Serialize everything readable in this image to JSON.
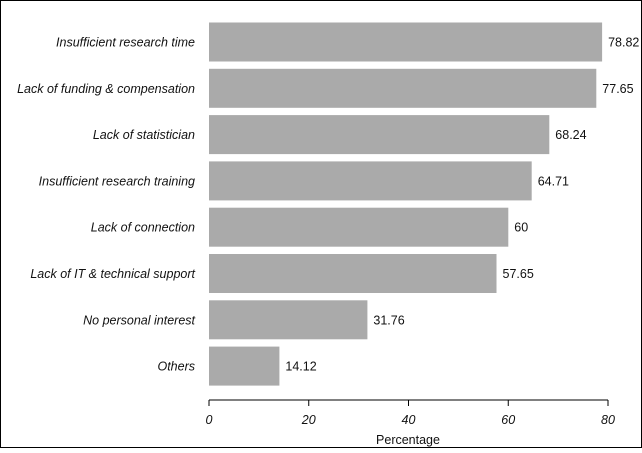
{
  "chart_data": {
    "type": "bar",
    "orientation": "horizontal",
    "categories": [
      "Insufficient research time",
      "Lack of funding & compensation",
      "Lack of statistician",
      "Insufficient research training",
      "Lack of connection",
      "Lack of IT & technical support",
      "No personal interest",
      "Others"
    ],
    "values": [
      78.82,
      77.65,
      68.24,
      64.71,
      60,
      57.65,
      31.76,
      14.12
    ],
    "value_labels": [
      "78.82",
      "77.65",
      "68.24",
      "64.71",
      "60",
      "57.65",
      "31.76",
      "14.12"
    ],
    "xlabel": "Percentage",
    "ylabel": "",
    "xlim": [
      0,
      80
    ],
    "xticks": [
      0,
      20,
      40,
      60,
      80
    ],
    "xtick_labels": [
      "0",
      "20",
      "40",
      "60",
      "80"
    ],
    "grid": false,
    "colors": {
      "bar": "#aaaaaa",
      "frame": "#000000"
    }
  }
}
